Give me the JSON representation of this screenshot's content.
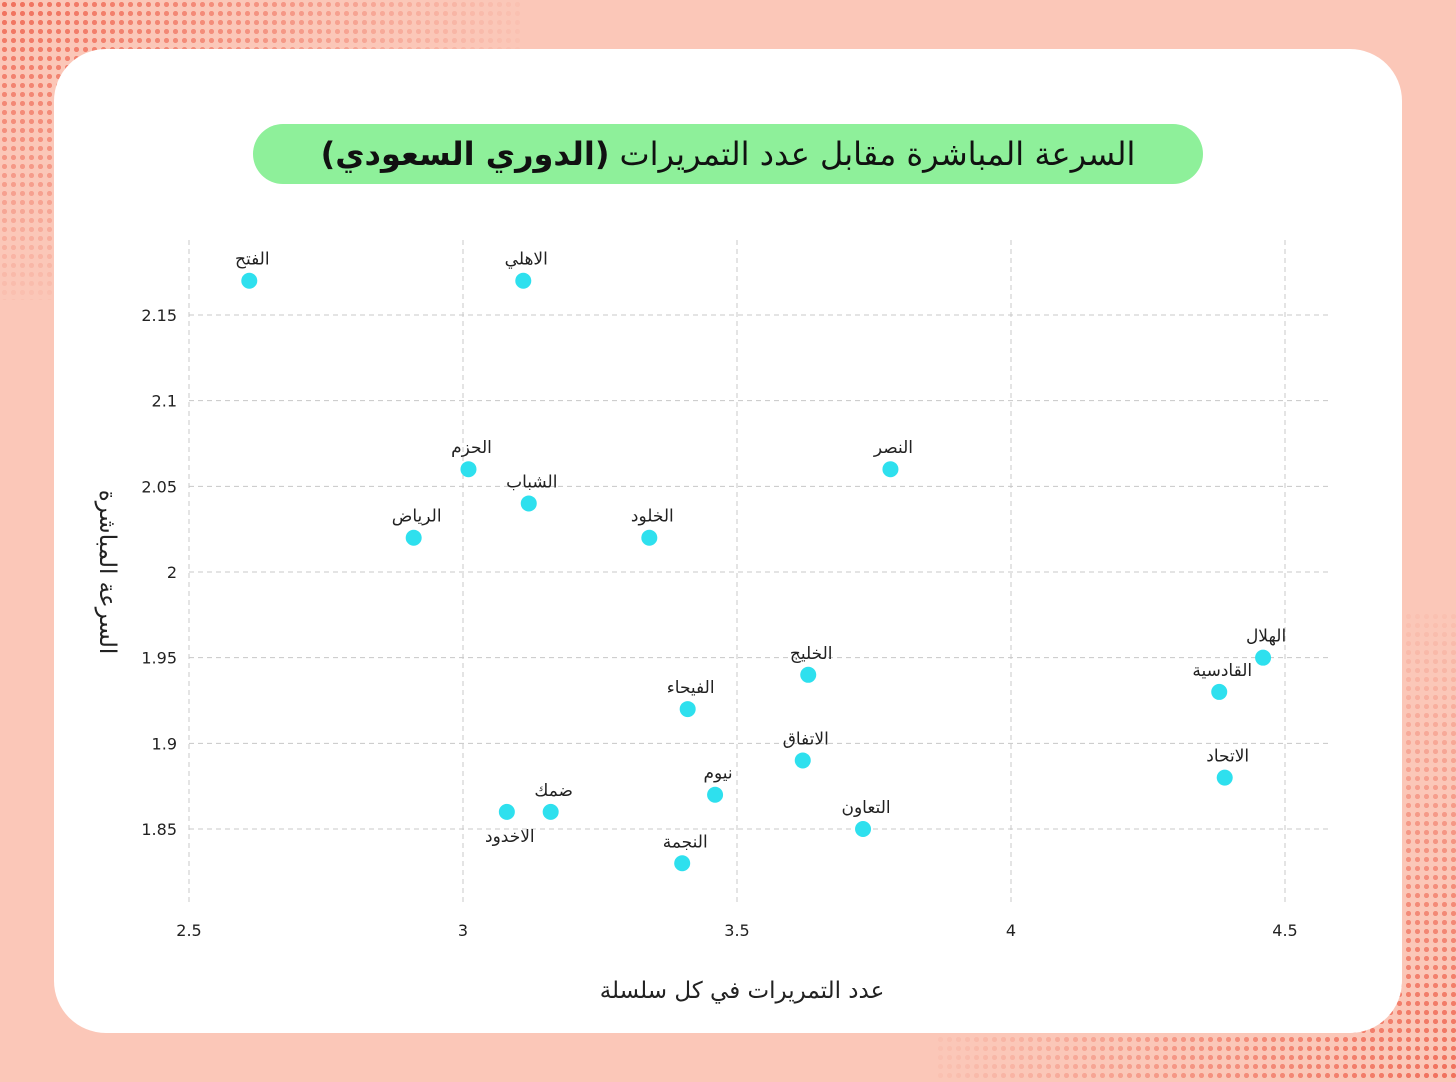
{
  "title": {
    "main": "السرعة المباشرة مقابل عدد التمريرات",
    "league": "(الدوري السعودي)"
  },
  "colors": {
    "point": "#2ee0ee",
    "title_bg": "#8ef09a",
    "background": "#fbc7b8",
    "grid": "#c8c8c8"
  },
  "chart_data": {
    "type": "scatter",
    "xlabel": "عدد التمريرات في كل سلسلة",
    "ylabel": "السرعة المباشرة",
    "xlim": [
      2.5,
      4.55
    ],
    "ylim": [
      1.805,
      2.195
    ],
    "xticks": [
      2.5,
      3,
      3.5,
      4,
      4.5
    ],
    "xtick_labels": [
      "2.5",
      "3",
      "3.5",
      "4",
      "4.5"
    ],
    "yticks": [
      1.85,
      1.9,
      1.95,
      2,
      2.05,
      2.1,
      2.15
    ],
    "ytick_labels": [
      "1.85",
      "1.9",
      "1.95",
      "2",
      "2.05",
      "2.1",
      "2.15"
    ],
    "grid": true,
    "points": [
      {
        "label": "الفتح",
        "x": 2.61,
        "y": 2.17,
        "label_pos": "above"
      },
      {
        "label": "الاهلي",
        "x": 3.11,
        "y": 2.17,
        "label_pos": "above"
      },
      {
        "label": "الحزم",
        "x": 3.01,
        "y": 2.06,
        "label_pos": "above"
      },
      {
        "label": "النصر",
        "x": 3.78,
        "y": 2.06,
        "label_pos": "above"
      },
      {
        "label": "الشباب",
        "x": 3.12,
        "y": 2.04,
        "label_pos": "above"
      },
      {
        "label": "الرياض",
        "x": 2.91,
        "y": 2.02,
        "label_pos": "above"
      },
      {
        "label": "الخلود",
        "x": 3.34,
        "y": 2.02,
        "label_pos": "above"
      },
      {
        "label": "الهلال",
        "x": 4.46,
        "y": 1.95,
        "label_pos": "above"
      },
      {
        "label": "الخليج",
        "x": 3.63,
        "y": 1.94,
        "label_pos": "above"
      },
      {
        "label": "القادسية",
        "x": 4.38,
        "y": 1.93,
        "label_pos": "above"
      },
      {
        "label": "الفيحاء",
        "x": 3.41,
        "y": 1.92,
        "label_pos": "above"
      },
      {
        "label": "الاتفاق",
        "x": 3.62,
        "y": 1.89,
        "label_pos": "above"
      },
      {
        "label": "الاتحاد",
        "x": 4.39,
        "y": 1.88,
        "label_pos": "above"
      },
      {
        "label": "نيوم",
        "x": 3.46,
        "y": 1.87,
        "label_pos": "above"
      },
      {
        "label": "ضمك",
        "x": 3.16,
        "y": 1.86,
        "label_pos": "above"
      },
      {
        "label": "الاخدود",
        "x": 3.08,
        "y": 1.86,
        "label_pos": "below"
      },
      {
        "label": "التعاون",
        "x": 3.73,
        "y": 1.85,
        "label_pos": "above"
      },
      {
        "label": "النجمة",
        "x": 3.4,
        "y": 1.83,
        "label_pos": "above"
      }
    ]
  }
}
